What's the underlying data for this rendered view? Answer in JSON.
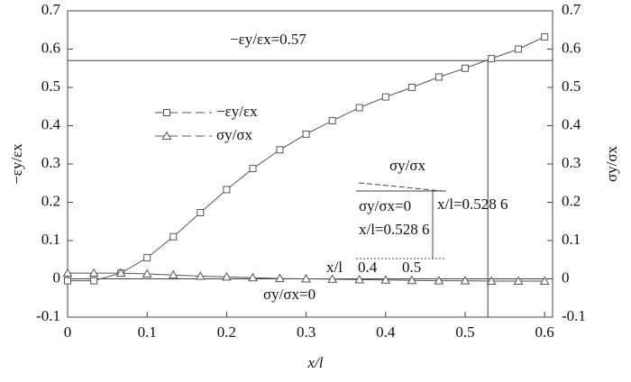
{
  "chart_data": {
    "type": "line",
    "x_label": "x/l",
    "y_label": "−εy/εx",
    "y2_label": "σy/σx",
    "x": [
      0,
      0.033,
      0.067,
      0.1,
      0.133,
      0.167,
      0.2,
      0.233,
      0.267,
      0.3,
      0.333,
      0.367,
      0.4,
      0.433,
      0.467,
      0.5,
      0.533,
      0.567,
      0.6
    ],
    "series": [
      {
        "name": "−εy/εx",
        "color": "#555555",
        "marker": "square",
        "axis": "y",
        "values": [
          -0.005,
          -0.005,
          0.015,
          0.055,
          0.11,
          0.173,
          0.233,
          0.288,
          0.337,
          0.378,
          0.413,
          0.447,
          0.475,
          0.5,
          0.527,
          0.55,
          0.575,
          0.6,
          0.632
        ]
      },
      {
        "name": "σy/σx",
        "color": "#555555",
        "marker": "triangle",
        "axis": "y2",
        "values": [
          0.015,
          0.015,
          0.015,
          0.013,
          0.01,
          0.007,
          0.005,
          0.003,
          0.001,
          0,
          -0.001,
          -0.002,
          -0.003,
          -0.004,
          -0.005,
          -0.005,
          -0.006,
          -0.006,
          -0.006
        ]
      }
    ],
    "xlim": [
      0,
      0.61
    ],
    "xticks": [
      0,
      0.1,
      0.2,
      0.3,
      0.4,
      0.5,
      0.6
    ],
    "ylim": [
      -0.1,
      0.7
    ],
    "yticks": [
      -0.1,
      0,
      0.1,
      0.2,
      0.3,
      0.4,
      0.5,
      0.6,
      0.7
    ],
    "y2lim": [
      -0.1,
      0.7
    ],
    "y2ticks": [
      -0.1,
      0,
      0.1,
      0.2,
      0.3,
      0.4,
      0.5,
      0.6,
      0.7
    ],
    "reference_y": 0.57,
    "reference_x": 0.5286,
    "zero_line": 0,
    "annotations": [
      "−εy/εx=0.57",
      "σy/σx=0",
      "σy/σx",
      "σy/σx=0",
      "x/l=0.528 6",
      "x/l=0.528 6",
      "x/l",
      "0.4",
      "0.5"
    ]
  }
}
